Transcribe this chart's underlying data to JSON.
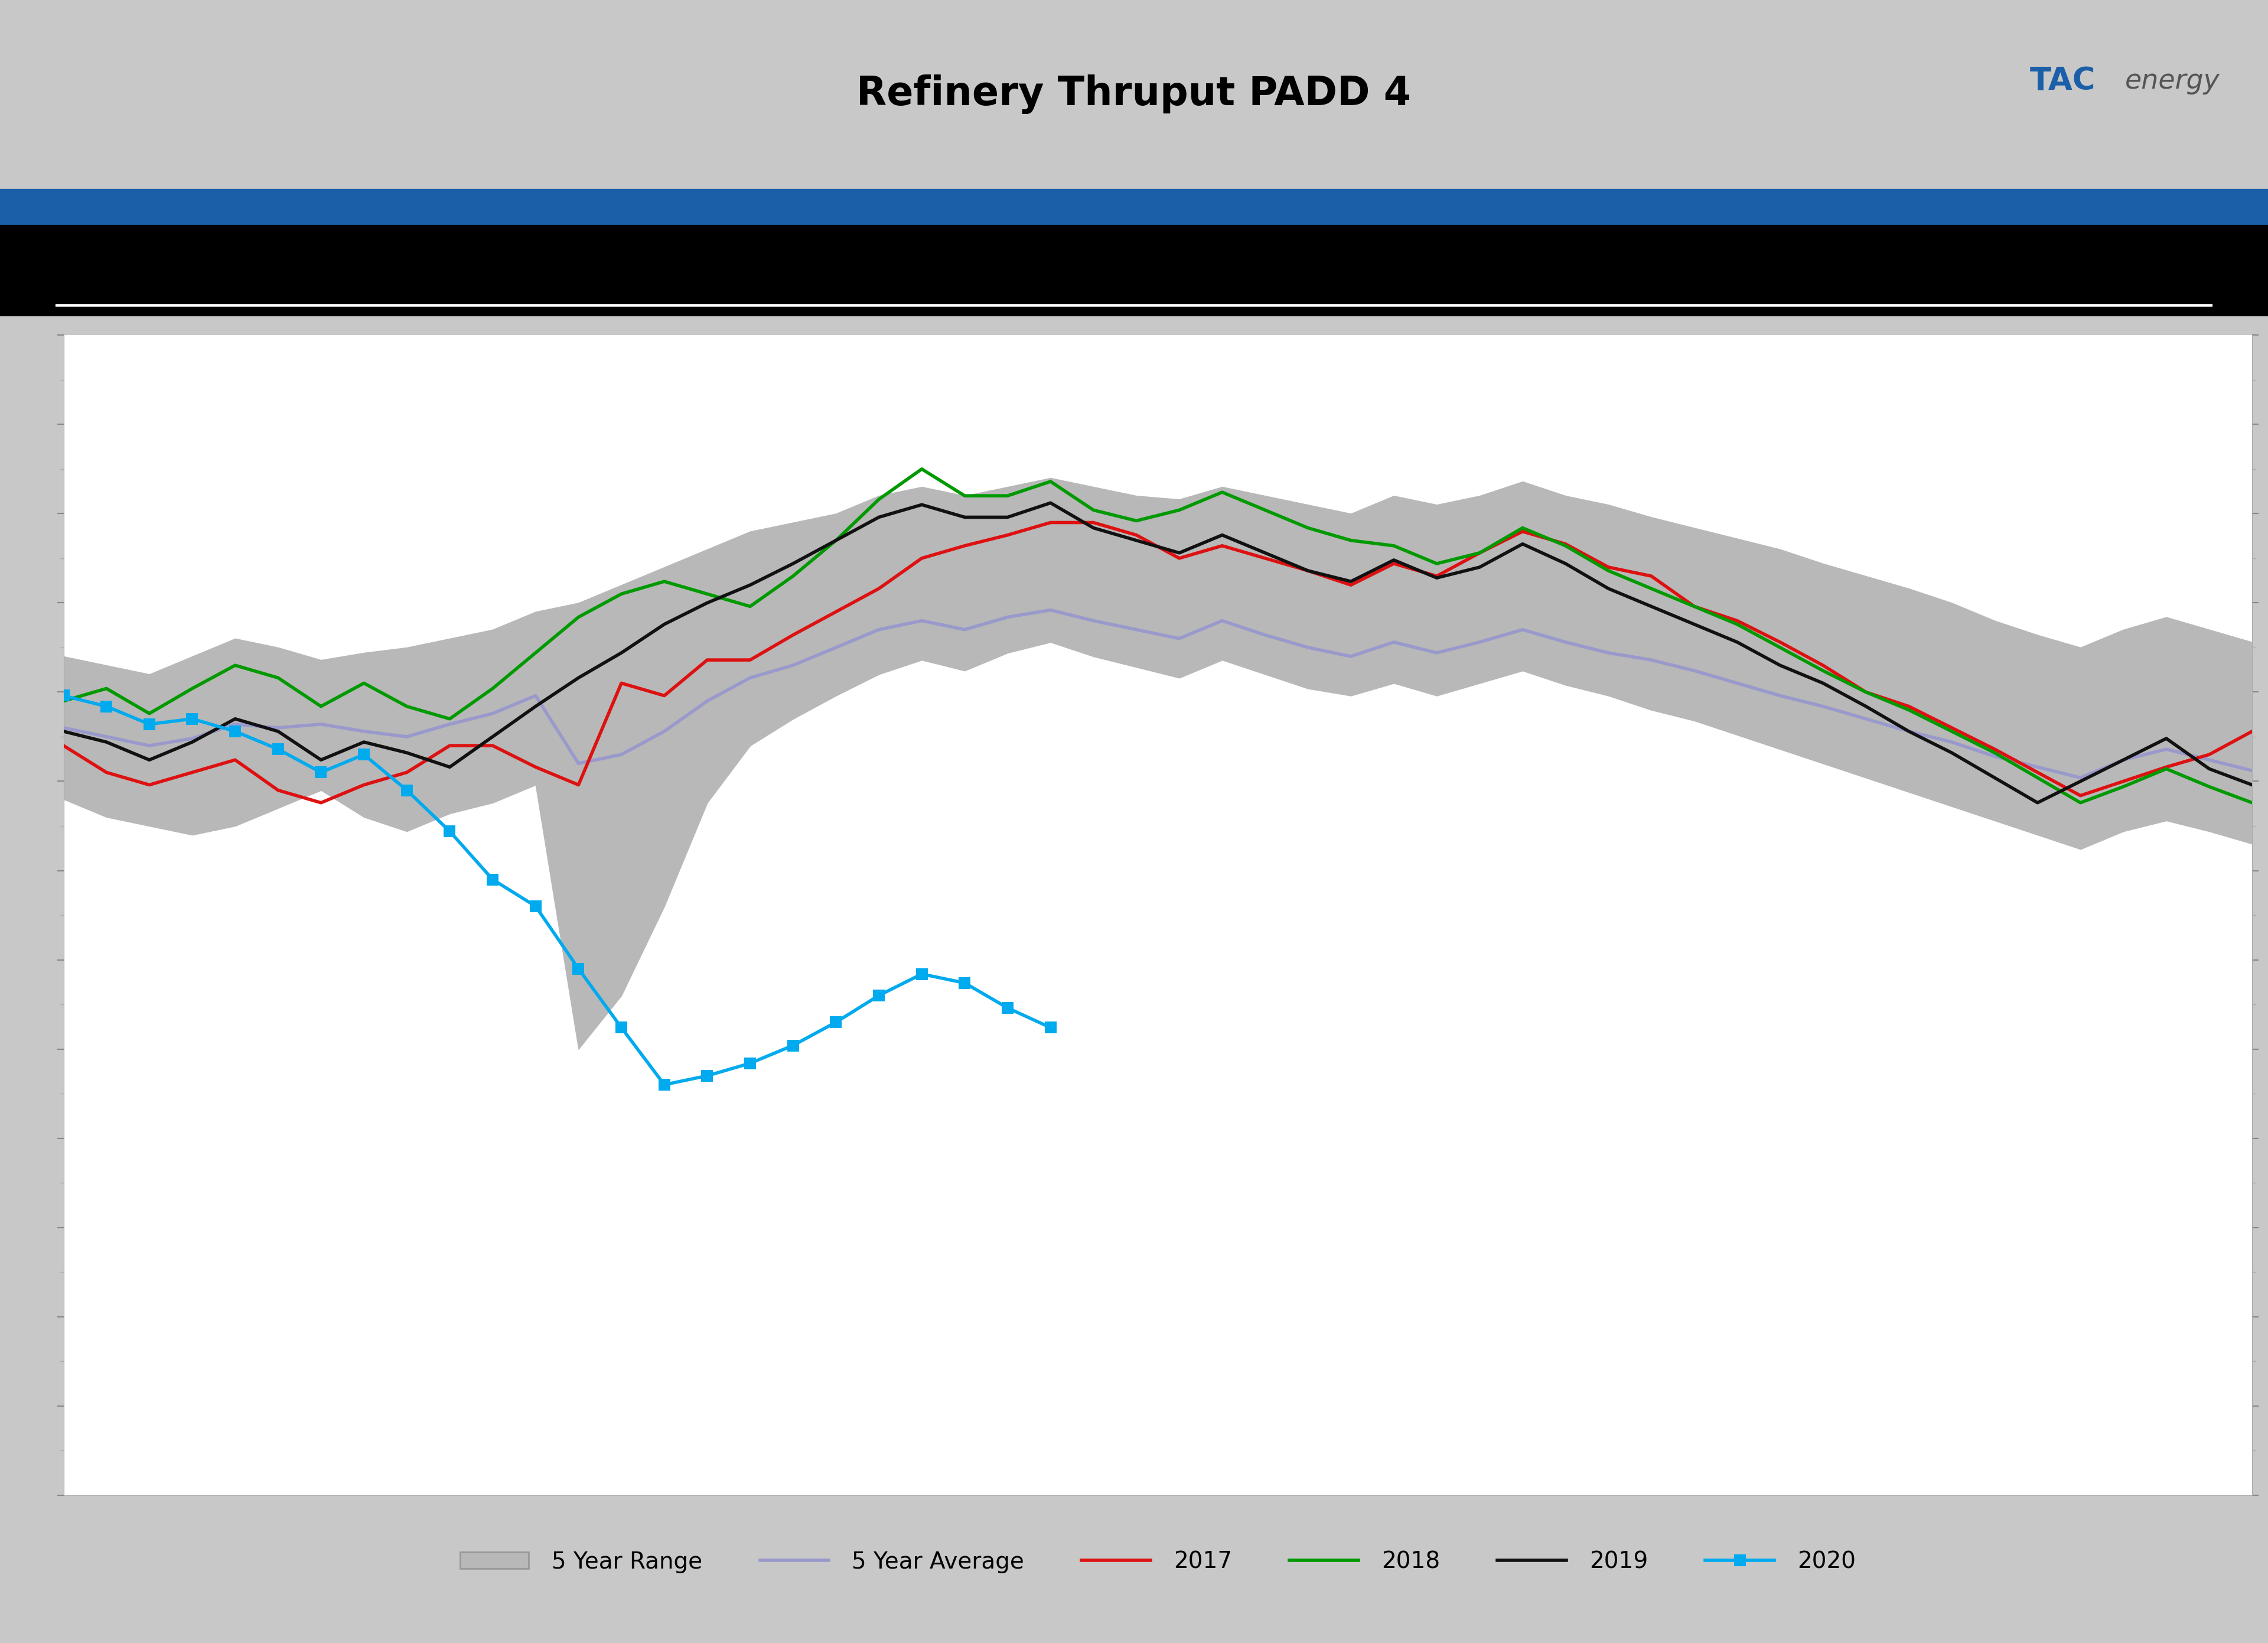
{
  "title": "Refinery Thruput PADD 4",
  "title_fontsize": 48,
  "background_outer": "#c8c8c8",
  "blue_bar_color": "#1a5fa8",
  "chart_bg": "#ffffff",
  "five_year_range_color": "#b8b8b8",
  "five_year_avg_color": "#9999cc",
  "color_2017": "#dd1111",
  "color_2018": "#009900",
  "color_2019": "#111111",
  "color_2020": "#00aaee",
  "range_upper": [
    570,
    565,
    560,
    570,
    580,
    575,
    568,
    572,
    575,
    580,
    585,
    595,
    600,
    610,
    620,
    630,
    640,
    645,
    650,
    660,
    665,
    660,
    665,
    670,
    665,
    660,
    658,
    665,
    660,
    655,
    650,
    660,
    655,
    660,
    668,
    660,
    655,
    648,
    642,
    636,
    630,
    622,
    615,
    608,
    600,
    590,
    582,
    575,
    585,
    592,
    585,
    578
  ],
  "range_lower": [
    490,
    480,
    475,
    470,
    475,
    485,
    495,
    480,
    472,
    482,
    488,
    498,
    350,
    380,
    430,
    488,
    520,
    535,
    548,
    560,
    568,
    562,
    572,
    578,
    570,
    564,
    558,
    568,
    560,
    552,
    548,
    555,
    548,
    555,
    562,
    554,
    548,
    540,
    534,
    526,
    518,
    510,
    502,
    494,
    486,
    478,
    470,
    462,
    472,
    478,
    472,
    465
  ],
  "avg_5yr": [
    530,
    525,
    520,
    524,
    532,
    530,
    532,
    528,
    525,
    532,
    538,
    548,
    510,
    515,
    528,
    545,
    558,
    565,
    575,
    585,
    590,
    585,
    592,
    596,
    590,
    585,
    580,
    590,
    582,
    575,
    570,
    578,
    572,
    578,
    585,
    578,
    572,
    568,
    562,
    555,
    548,
    542,
    535,
    528,
    522,
    514,
    508,
    502,
    512,
    518,
    512,
    506
  ],
  "data_2017": [
    520,
    505,
    498,
    505,
    512,
    495,
    488,
    498,
    505,
    520,
    520,
    508,
    498,
    555,
    548,
    568,
    568,
    582,
    595,
    608,
    625,
    632,
    638,
    645,
    645,
    638,
    625,
    632,
    625,
    618,
    610,
    622,
    615,
    628,
    640,
    633,
    620,
    615,
    598,
    590,
    578,
    565,
    550,
    542,
    530,
    518,
    505,
    492,
    500,
    508,
    515,
    528
  ],
  "data_2018": [
    545,
    552,
    538,
    552,
    565,
    558,
    542,
    555,
    542,
    535,
    552,
    572,
    592,
    605,
    612,
    605,
    598,
    615,
    635,
    658,
    675,
    660,
    660,
    668,
    652,
    646,
    652,
    662,
    652,
    642,
    635,
    632,
    622,
    628,
    642,
    632,
    618,
    608,
    598,
    588,
    575,
    562,
    550,
    540,
    528,
    516,
    502,
    488,
    497,
    507,
    497,
    488
  ],
  "data_2019": [
    528,
    522,
    512,
    522,
    535,
    528,
    512,
    522,
    516,
    508,
    525,
    542,
    558,
    572,
    588,
    600,
    610,
    622,
    635,
    648,
    655,
    648,
    648,
    656,
    642,
    635,
    628,
    638,
    628,
    618,
    612,
    624,
    614,
    620,
    633,
    622,
    608,
    598,
    588,
    578,
    565,
    555,
    542,
    528,
    516,
    502,
    488,
    500,
    512,
    524,
    507,
    498
  ],
  "data_2020": [
    548,
    542,
    532,
    535,
    528,
    518,
    505,
    515,
    495,
    472,
    445,
    430,
    395,
    362,
    330,
    335,
    342,
    352,
    365,
    380,
    392,
    387,
    373,
    362,
    null,
    null,
    null,
    null,
    null,
    null,
    null,
    null,
    null,
    null,
    null,
    null,
    null,
    null,
    null,
    null,
    null,
    null,
    null,
    null,
    null,
    null,
    null,
    null,
    null,
    null,
    null,
    null
  ],
  "weeks": [
    1,
    2,
    3,
    4,
    5,
    6,
    7,
    8,
    9,
    10,
    11,
    12,
    13,
    14,
    15,
    16,
    17,
    18,
    19,
    20,
    21,
    22,
    23,
    24,
    25,
    26,
    27,
    28,
    29,
    30,
    31,
    32,
    33,
    34,
    35,
    36,
    37,
    38,
    39,
    40,
    41,
    42,
    43,
    44,
    45,
    46,
    47,
    48,
    49,
    50,
    51,
    52
  ],
  "y_min": 100,
  "y_max": 750,
  "logo_tac_color": "#1a5fa8",
  "logo_energy_color": "#555555"
}
